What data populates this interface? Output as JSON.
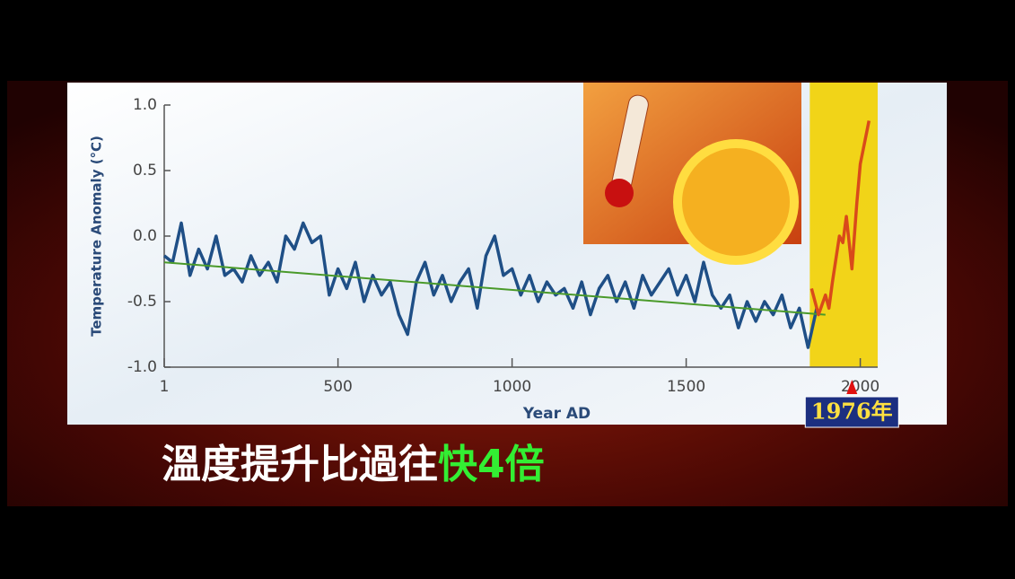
{
  "chart_data": {
    "type": "line",
    "ylabel": "Temperature Anomaly (°C)",
    "xlabel": "Year AD",
    "xlim": [
      1,
      2050
    ],
    "ylim": [
      -1,
      1
    ],
    "xticks": [
      1,
      500,
      1000,
      1500,
      2000
    ],
    "yticks": [
      {
        "value": 1,
        "label": "1.0"
      },
      {
        "value": 0.5,
        "label": "0.5"
      },
      {
        "value": 0,
        "label": "0.0"
      },
      {
        "value": -0.5,
        "label": "-0.5"
      },
      {
        "value": -1,
        "label": "-1.0"
      }
    ],
    "highlight": [
      1855,
      2050
    ],
    "highlight_color": "#f2d000",
    "series": [
      {
        "color": "#1f4f86",
        "width": 3.5,
        "x": [
          1,
          25,
          50,
          75,
          100,
          125,
          150,
          175,
          200,
          225,
          250,
          275,
          300,
          325,
          350,
          375,
          400,
          425,
          450,
          475,
          500,
          525,
          550,
          575,
          600,
          625,
          650,
          675,
          700,
          725,
          750,
          775,
          800,
          825,
          850,
          875,
          900,
          925,
          950,
          975,
          1000,
          1025,
          1050,
          1075,
          1100,
          1125,
          1150,
          1175,
          1200,
          1225,
          1250,
          1275,
          1300,
          1325,
          1350,
          1375,
          1400,
          1425,
          1450,
          1475,
          1500,
          1525,
          1550,
          1575,
          1600,
          1625,
          1650,
          1675,
          1700,
          1725,
          1750,
          1775,
          1800,
          1825,
          1850,
          1875
        ],
        "values": [
          -0.15,
          -0.2,
          0.1,
          -0.3,
          -0.1,
          -0.25,
          0.0,
          -0.3,
          -0.25,
          -0.35,
          -0.15,
          -0.3,
          -0.2,
          -0.35,
          0.0,
          -0.1,
          0.1,
          -0.05,
          0.0,
          -0.45,
          -0.25,
          -0.4,
          -0.2,
          -0.5,
          -0.3,
          -0.45,
          -0.35,
          -0.6,
          -0.75,
          -0.35,
          -0.2,
          -0.45,
          -0.3,
          -0.5,
          -0.35,
          -0.25,
          -0.55,
          -0.15,
          0.0,
          -0.3,
          -0.25,
          -0.45,
          -0.3,
          -0.5,
          -0.35,
          -0.45,
          -0.4,
          -0.55,
          -0.35,
          -0.6,
          -0.4,
          -0.3,
          -0.5,
          -0.35,
          -0.55,
          -0.3,
          -0.45,
          -0.35,
          -0.25,
          -0.45,
          -0.3,
          -0.5,
          -0.2,
          -0.45,
          -0.55,
          -0.45,
          -0.7,
          -0.5,
          -0.65,
          -0.5,
          -0.6,
          -0.45,
          -0.7,
          -0.55,
          -0.85,
          -0.55
        ]
      },
      {
        "color": "#4a9a2a",
        "width": 2,
        "x": [
          1,
          1900
        ],
        "values": [
          -0.2,
          -0.6
        ]
      },
      {
        "color": "#d94a1a",
        "width": 3.5,
        "x": [
          1860,
          1880,
          1900,
          1910,
          1920,
          1940,
          1950,
          1960,
          1976,
          1990,
          2000,
          2025
        ],
        "values": [
          -0.4,
          -0.6,
          -0.45,
          -0.55,
          -0.35,
          0.0,
          -0.05,
          0.15,
          -0.25,
          0.25,
          0.55,
          0.88
        ]
      }
    ],
    "annotation": {
      "text": "1976年",
      "x": 1976
    },
    "caption": [
      {
        "text": "溫度提升比過往",
        "color": "#ffffff"
      },
      {
        "text": "快4倍",
        "color": "#33ee33"
      }
    ]
  }
}
